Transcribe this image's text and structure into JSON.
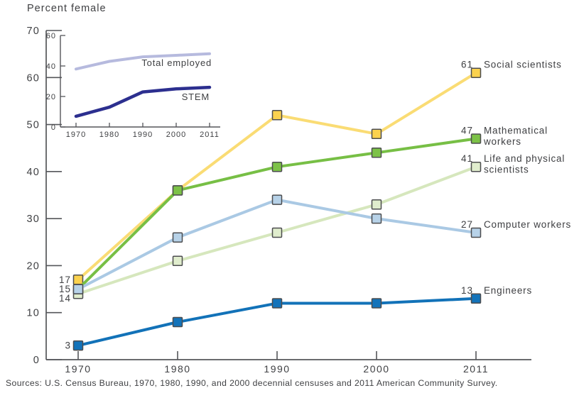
{
  "title": "Percent female",
  "source": "Sources: U.S. Census Bureau, 1970, 1980, 1990, and 2000 decennial censuses and 2011 American Community Survey.",
  "colors": {
    "axis": "#55565a",
    "text": "#3f4043",
    "marker_border": "#4c4d4f"
  },
  "chart_data": [
    {
      "id": "main",
      "type": "line",
      "title": "Percent female",
      "x": [
        1970,
        1980,
        1990,
        2000,
        2011
      ],
      "xtick_labels": [
        "1970",
        "1980",
        "1990",
        "2000",
        "2011"
      ],
      "ylim": [
        0,
        70
      ],
      "yticks": [
        0,
        10,
        20,
        30,
        40,
        50,
        60,
        70
      ],
      "grid": false,
      "legend_position": "right-end-labels",
      "series": [
        {
          "name": "Social scientists",
          "name_lines": [
            "Social scientists"
          ],
          "values": [
            17,
            36,
            52,
            48,
            61
          ],
          "start_label": "17",
          "end_label": "61",
          "line_color": "#fadc74",
          "marker_color": "#fbd24e"
        },
        {
          "name": "Mathematical workers",
          "name_lines": [
            "Mathematical",
            "workers"
          ],
          "values": [
            15,
            36,
            41,
            44,
            47
          ],
          "start_label": null,
          "end_label": "47",
          "line_color": "#77bf45",
          "marker_color": "#7cc247"
        },
        {
          "name": "Life and physical scientists",
          "name_lines": [
            "Life and physical",
            "scientists"
          ],
          "values": [
            14,
            21,
            27,
            33,
            41
          ],
          "start_label": "14",
          "end_label": "41",
          "line_color": "#d6e7bd",
          "marker_color": "#e0edcd"
        },
        {
          "name": "Computer workers",
          "name_lines": [
            "Computer workers"
          ],
          "values": [
            15,
            26,
            34,
            30,
            27
          ],
          "start_label": "15",
          "end_label": "27",
          "line_color": "#aac9e4",
          "marker_color": "#b7d2e8"
        },
        {
          "name": "Engineers",
          "name_lines": [
            "Engineers"
          ],
          "values": [
            3,
            8,
            12,
            12,
            13
          ],
          "start_label": "3",
          "end_label": "13",
          "line_color": "#1272b8",
          "marker_color": "#1373ba"
        }
      ]
    },
    {
      "id": "inset",
      "type": "line",
      "x": [
        1970,
        1980,
        1990,
        2000,
        2011
      ],
      "xtick_labels": [
        "1970",
        "1980",
        "1990",
        "2000",
        "2011"
      ],
      "ylim": [
        0,
        60
      ],
      "yticks": [
        0,
        20,
        40,
        60
      ],
      "grid": false,
      "legend_position": "inline-labels",
      "series": [
        {
          "name": "Total employed",
          "values": [
            38,
            43,
            46,
            47,
            48
          ],
          "line_color": "#b6bade"
        },
        {
          "name": "STEM",
          "values": [
            7,
            13,
            23,
            25,
            26
          ],
          "line_color": "#2c2f8f"
        }
      ]
    }
  ]
}
